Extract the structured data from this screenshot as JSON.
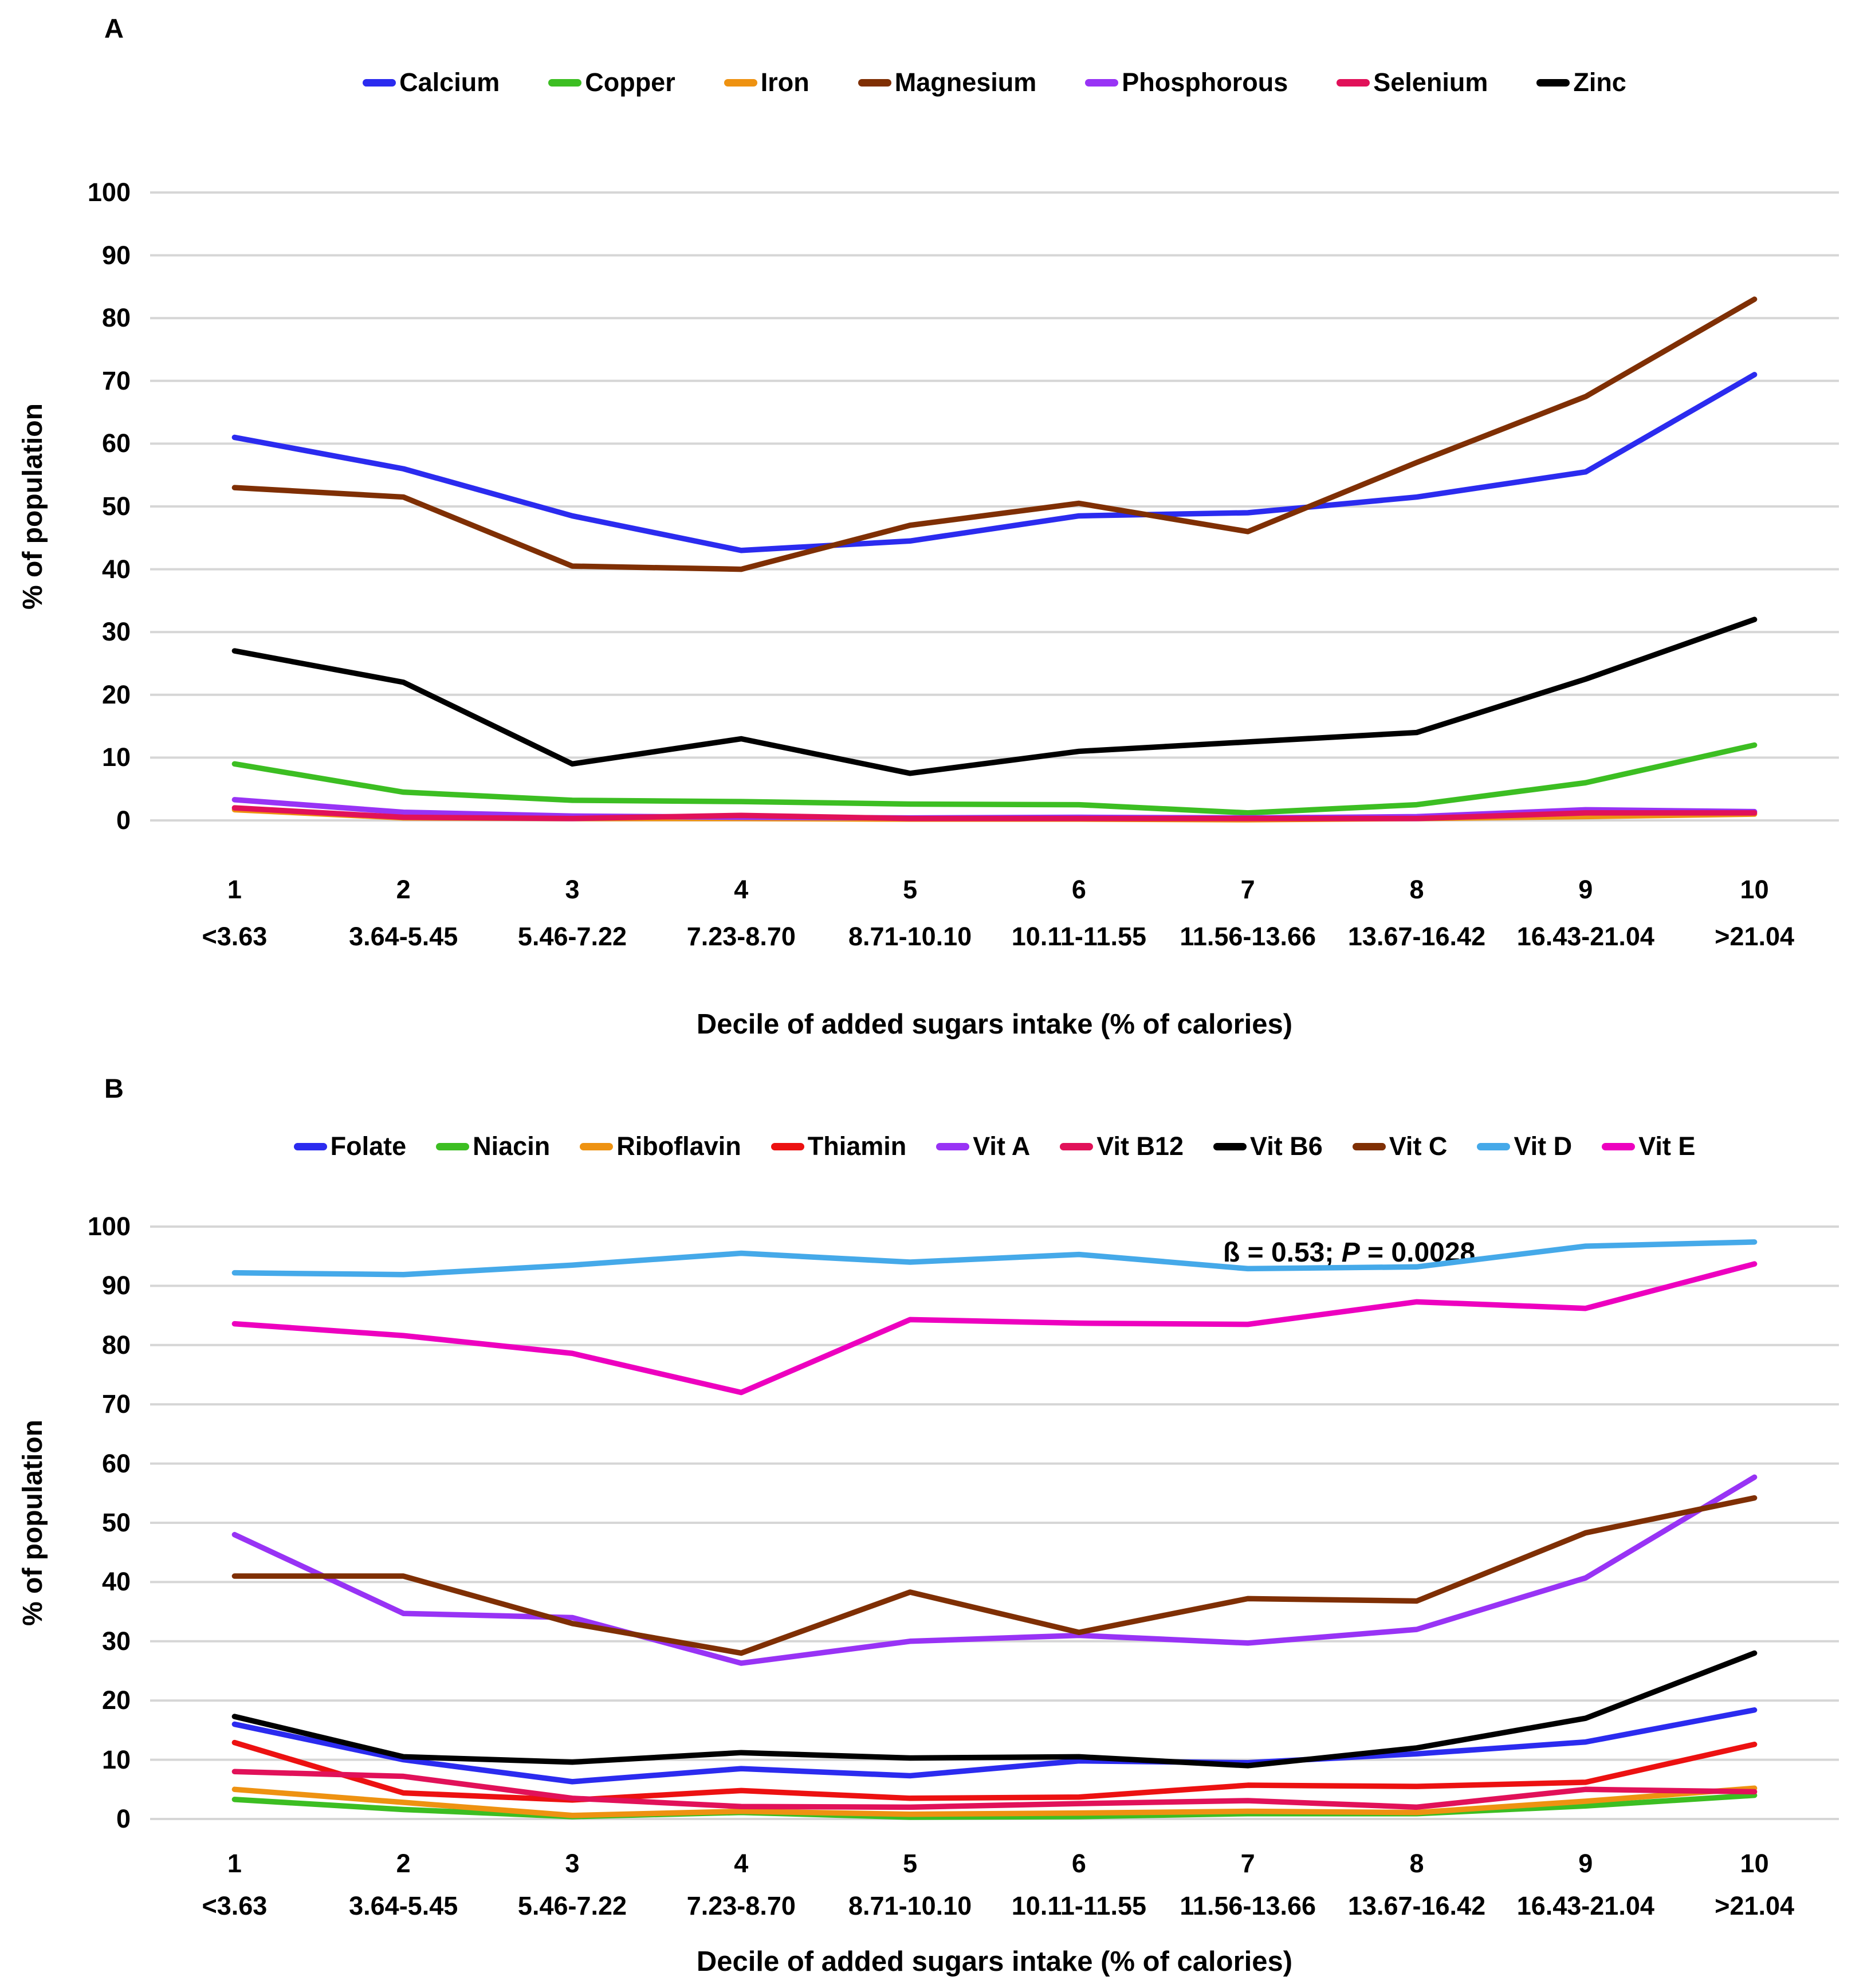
{
  "figure": {
    "background": "#FFFFFF",
    "gridline_color": "#D6D6D6"
  },
  "chart_data": [
    {
      "panel": "A",
      "type": "line",
      "ylabel": "% of population",
      "xlabel": "Decile of added sugars intake (% of calories)",
      "ylim": [
        0,
        100
      ],
      "ytick_step": 10,
      "grid": "horizontal",
      "legend_position": "top",
      "categories": [
        "1",
        "2",
        "3",
        "4",
        "5",
        "6",
        "7",
        "8",
        "9",
        "10"
      ],
      "category_ranges": [
        "<3.63",
        "3.64-5.45",
        "5.46-7.22",
        "7.23-8.70",
        "8.71-10.10",
        "10.11-11.55",
        "11.56-13.66",
        "13.67-16.42",
        "16.43-21.04",
        ">21.04"
      ],
      "series": [
        {
          "name": "Calcium",
          "color": "#2B2BEF",
          "values": [
            61,
            56,
            48.5,
            43,
            44.5,
            48.5,
            49,
            51.5,
            55.5,
            71
          ]
        },
        {
          "name": "Copper",
          "color": "#3CBE22",
          "values": [
            9,
            4.5,
            3.2,
            3,
            2.6,
            2.5,
            1.2,
            2.5,
            6,
            12
          ]
        },
        {
          "name": "Iron",
          "color": "#EE9211",
          "values": [
            1.7,
            0.4,
            0.3,
            0.3,
            0.2,
            0.2,
            0.1,
            0.3,
            0.6,
            1
          ]
        },
        {
          "name": "Magnesium",
          "color": "#7F2F04",
          "values": [
            53,
            51.5,
            40.5,
            40,
            47,
            50.5,
            46,
            57,
            67.5,
            83
          ]
        },
        {
          "name": "Phosphorous",
          "color": "#9833F5",
          "values": [
            3.3,
            1.3,
            0.7,
            0.5,
            0.4,
            0.5,
            0.4,
            0.6,
            1.7,
            1.4
          ]
        },
        {
          "name": "Selenium",
          "color": "#E11159",
          "values": [
            2,
            0.5,
            0.3,
            0.8,
            0.3,
            0.3,
            0.3,
            0.3,
            1.2,
            1.2
          ]
        },
        {
          "name": "Zinc",
          "color": "#000000",
          "values": [
            27,
            22,
            9,
            13,
            7.5,
            11,
            12.5,
            14,
            22.5,
            32
          ]
        }
      ]
    },
    {
      "panel": "B",
      "type": "line",
      "ylabel": "% of population",
      "xlabel": "Decile of added sugars intake (% of calories)",
      "ylim": [
        0,
        100
      ],
      "ytick_step": 10,
      "grid": "horizontal",
      "legend_position": "top",
      "annotation": {
        "beta_part": "ß  = 0.53; ",
        "p_label": "P",
        "value_part": " = 0.0028"
      },
      "categories": [
        "1",
        "2",
        "3",
        "4",
        "5",
        "6",
        "7",
        "8",
        "9",
        "10"
      ],
      "category_ranges": [
        "<3.63",
        "3.64-5.45",
        "5.46-7.22",
        "7.23-8.70",
        "8.71-10.10",
        "10.11-11.55",
        "11.56-13.66",
        "13.67-16.42",
        "16.43-21.04",
        ">21.04"
      ],
      "series": [
        {
          "name": "Folate",
          "color": "#2B2BEF",
          "values": [
            16,
            10,
            6.3,
            8.5,
            7.3,
            9.8,
            9.5,
            11,
            13,
            18.4
          ]
        },
        {
          "name": "Niacin",
          "color": "#3CBE22",
          "values": [
            3.3,
            1.6,
            0.4,
            1.1,
            0.3,
            0.4,
            0.9,
            0.9,
            2.2,
            4
          ]
        },
        {
          "name": "Riboflavin",
          "color": "#EE9211",
          "values": [
            5,
            2.8,
            0.6,
            1.3,
            0.8,
            1,
            1.3,
            1.1,
            3,
            5.2
          ]
        },
        {
          "name": "Thiamin",
          "color": "#EC1111",
          "values": [
            12.9,
            4.4,
            3.2,
            4.8,
            3.5,
            3.7,
            5.7,
            5.5,
            6.2,
            12.6
          ]
        },
        {
          "name": "Vit A",
          "color": "#9833F5",
          "values": [
            48,
            34.7,
            34,
            26.3,
            30,
            31,
            29.7,
            32,
            40.7,
            57.7
          ]
        },
        {
          "name": "Vit B12",
          "color": "#E11159",
          "values": [
            8,
            7.2,
            3.5,
            2.1,
            2,
            2.6,
            3.1,
            2,
            5,
            4.6
          ]
        },
        {
          "name": "Vit B6",
          "color": "#000000",
          "values": [
            17.3,
            10.5,
            9.6,
            11.2,
            10.3,
            10.5,
            9,
            12,
            17,
            28
          ]
        },
        {
          "name": "Vit C",
          "color": "#7F2F04",
          "values": [
            41,
            41,
            33,
            28,
            38.3,
            31.5,
            37.2,
            36.8,
            48.3,
            54.2
          ]
        },
        {
          "name": "Vit D",
          "color": "#45A9E9",
          "values": [
            92.2,
            91.9,
            93.5,
            95.5,
            94,
            95.3,
            92.9,
            93.2,
            96.7,
            97.4
          ]
        },
        {
          "name": "Vit E",
          "color": "#ED00BF",
          "values": [
            83.6,
            81.6,
            78.6,
            72,
            84.3,
            83.7,
            83.5,
            87.3,
            86.2,
            93.7
          ]
        }
      ]
    }
  ]
}
